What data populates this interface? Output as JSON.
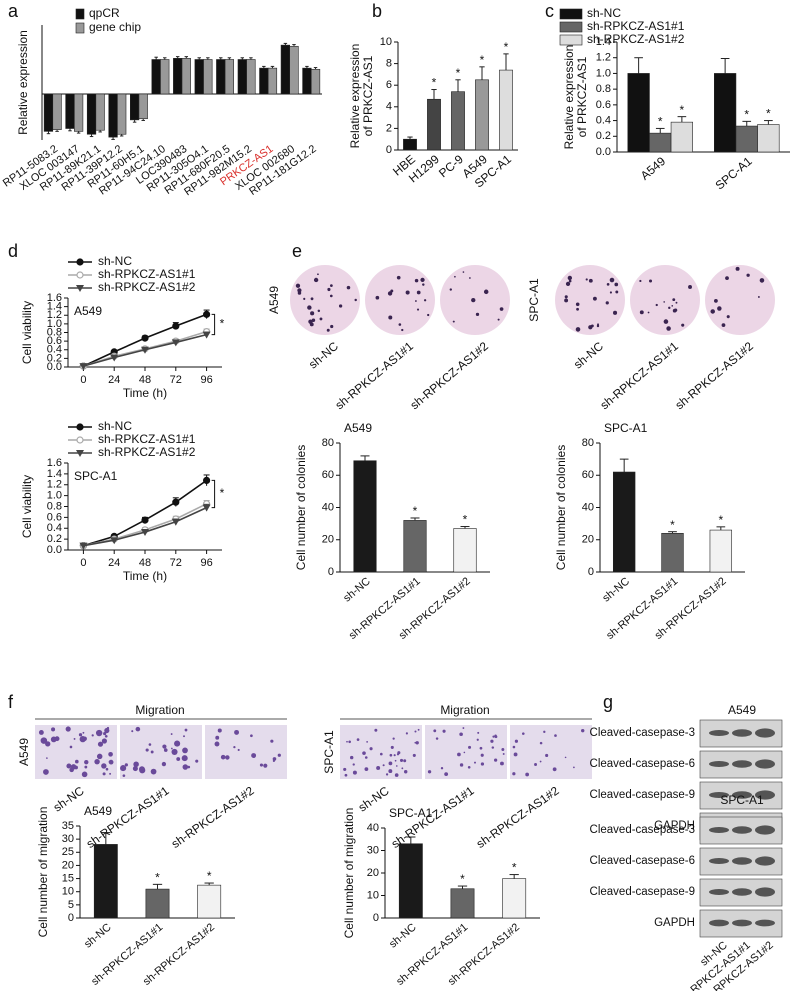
{
  "panel_letters": [
    "a",
    "b",
    "c",
    "d",
    "e",
    "f",
    "g"
  ],
  "chart_data": [
    {
      "type": "bar",
      "ylabel": "Relative expression",
      "categories": [
        "RP11-5083.2",
        "XLOC 003147",
        "RP11-89K21.1",
        "RP11-39P12.2",
        "RP11-60H5.1",
        "RP11-94C24.10",
        "LOC390483",
        "RP11-305O4.1",
        "RP11-680F20.5",
        "RP11-982M15.2",
        "PRKCZ-AS1",
        "XLOC 002680",
        "RP11-181G12.2"
      ],
      "highlight": {
        "category": "PRKCZ-AS1",
        "color": "#d9302c"
      },
      "series": [
        {
          "name": "qpCR",
          "color": "#111111",
          "values": [
            -6.5,
            -6,
            -7,
            -7.5,
            -4.5,
            6,
            6.2,
            6,
            6,
            6,
            4.5,
            8.5,
            4.5
          ],
          "errors": [
            0.4,
            0.4,
            0.4,
            0.4,
            0.4,
            0.4,
            0.3,
            0.3,
            0.3,
            0.3,
            0.3,
            0.3,
            0.3
          ]
        },
        {
          "name": "gene chip",
          "color": "#999999",
          "values": [
            -6.2,
            -6.5,
            -6.3,
            -7,
            -4.3,
            6,
            6.2,
            6,
            6,
            6,
            4.5,
            8.3,
            4.3
          ],
          "errors": [
            0.3,
            0.3,
            0.3,
            0.3,
            0.3,
            0.3,
            0.3,
            0.3,
            0.3,
            0.3,
            0.3,
            0.3,
            0.3
          ]
        }
      ],
      "ylim": [
        -8,
        12
      ]
    },
    {
      "type": "bar",
      "ylabel": [
        "Relative expression",
        "of PRKCZ-AS1"
      ],
      "categories": [
        "HBE",
        "H1299",
        "PC-9",
        "A549",
        "SPC-A1"
      ],
      "values": [
        1,
        4.7,
        5.4,
        6.5,
        7.4
      ],
      "errors": [
        0.2,
        0.9,
        1.1,
        1.2,
        1.5
      ],
      "colors": [
        "#111111",
        "#444444",
        "#666666",
        "#999999",
        "#dddddd"
      ],
      "significance": [
        null,
        "*",
        "*",
        "*",
        "*"
      ],
      "ylim": [
        0,
        10
      ],
      "yticks": [
        0,
        2,
        4,
        6,
        8,
        10
      ]
    },
    {
      "type": "bar",
      "ylabel": [
        "Relative expression",
        "of PRKCZ-AS1"
      ],
      "categories": [
        "A549",
        "SPC-A1"
      ],
      "series": [
        {
          "name": "sh-NC",
          "color": "#111111",
          "values": [
            1,
            1
          ],
          "errors": [
            0.2,
            0.19
          ]
        },
        {
          "name": "sh-RPKCZ-AS1#1",
          "color": "#666666",
          "values": [
            0.24,
            0.33
          ],
          "errors": [
            0.06,
            0.06
          ],
          "significance": [
            "*",
            "*"
          ]
        },
        {
          "name": "sh-RPKCZ-AS1#2",
          "color": "#dddddd",
          "values": [
            0.38,
            0.35
          ],
          "errors": [
            0.07,
            0.05
          ],
          "significance": [
            "*",
            "*"
          ]
        }
      ],
      "ylim": [
        0,
        1.4
      ],
      "yticks": [
        {
          "value": 0,
          "label": "0.0"
        },
        0.2,
        0.4,
        0.6,
        0.8,
        {
          "value": 1,
          "label": "1.0"
        },
        1.2,
        1.4
      ]
    },
    {
      "type": "line",
      "title": "A549",
      "ylabel": "Cell viability",
      "xlabel": "Time (h)",
      "x": [
        0,
        24,
        48,
        72,
        96
      ],
      "xlim": [
        -12,
        108
      ],
      "xticks": [
        0,
        24,
        48,
        72,
        96
      ],
      "ylim": [
        0,
        1.6
      ],
      "yticks": [
        {
          "value": 0,
          "label": "0.0"
        },
        0.2,
        0.4,
        0.6,
        0.8,
        {
          "value": 1,
          "label": "1.0"
        },
        1.2,
        1.4,
        1.6
      ],
      "annotation": "*",
      "series": [
        {
          "name": "sh-NC",
          "color": "#111111",
          "marker": "circle",
          "values": [
            0.02,
            0.35,
            0.67,
            0.95,
            1.22
          ],
          "errors": [
            0.01,
            0.03,
            0.05,
            0.08,
            0.1
          ]
        },
        {
          "name": "sh-RPKCZ-AS1#1",
          "color": "#aaaaaa",
          "marker": "open-circle",
          "values": [
            0.02,
            0.25,
            0.42,
            0.6,
            0.82
          ],
          "errors": [
            0.01,
            0.03,
            0.04,
            0.05,
            0.06
          ]
        },
        {
          "name": "sh-RPKCZ-AS1#2",
          "color": "#444444",
          "marker": "triangle",
          "values": [
            0.02,
            0.22,
            0.4,
            0.57,
            0.75
          ],
          "errors": [
            0.01,
            0.03,
            0.04,
            0.05,
            0.06
          ]
        }
      ]
    },
    {
      "type": "line",
      "title": "SPC-A1",
      "ylabel": "Cell viability",
      "xlabel": "Time (h)",
      "x": [
        0,
        24,
        48,
        72,
        96
      ],
      "xlim": [
        -12,
        108
      ],
      "xticks": [
        0,
        24,
        48,
        72,
        96
      ],
      "ylim": [
        0,
        1.6
      ],
      "yticks": [
        {
          "value": 0,
          "label": "0.0"
        },
        0.2,
        0.4,
        0.6,
        0.8,
        {
          "value": 1,
          "label": "1.0"
        },
        1.2,
        1.4,
        1.6
      ],
      "annotation": "*",
      "series": [
        {
          "name": "sh-NC",
          "color": "#111111",
          "marker": "circle",
          "values": [
            0.08,
            0.25,
            0.55,
            0.88,
            1.28
          ],
          "errors": [
            0.01,
            0.03,
            0.05,
            0.08,
            0.1
          ]
        },
        {
          "name": "sh-RPKCZ-AS1#1",
          "color": "#aaaaaa",
          "marker": "open-circle",
          "values": [
            0.08,
            0.2,
            0.37,
            0.57,
            0.85
          ],
          "errors": [
            0.01,
            0.03,
            0.04,
            0.05,
            0.06
          ]
        },
        {
          "name": "sh-RPKCZ-AS1#2",
          "color": "#444444",
          "marker": "triangle",
          "values": [
            0.08,
            0.18,
            0.33,
            0.52,
            0.78
          ],
          "errors": [
            0.01,
            0.03,
            0.04,
            0.05,
            0.06
          ]
        }
      ]
    },
    {
      "type": "bar",
      "title": "A549",
      "ylabel": "Cell number of colonies",
      "categories": [
        "sh-NC",
        "sh-RPKCZ-AS1#1",
        "sh-RPKCZ-AS1#2"
      ],
      "values": [
        69,
        32,
        27
      ],
      "errors": [
        3,
        1.5,
        1.2
      ],
      "colors": [
        "#1a1a1a",
        "#666666",
        "#f2f2f2"
      ],
      "significance": [
        null,
        "*",
        "*"
      ],
      "ylim": [
        0,
        80
      ],
      "yticks": [
        0,
        20,
        40,
        60,
        80
      ]
    },
    {
      "type": "bar",
      "title": "SPC-A1",
      "ylabel": "Cell number of colonies",
      "categories": [
        "sh-NC",
        "sh-RPKCZ-AS1#1",
        "sh-RPKCZ-AS1#2"
      ],
      "values": [
        62,
        24,
        26
      ],
      "errors": [
        8,
        1,
        2
      ],
      "colors": [
        "#1a1a1a",
        "#666666",
        "#f2f2f2"
      ],
      "significance": [
        null,
        "*",
        "*"
      ],
      "ylim": [
        0,
        80
      ],
      "yticks": [
        0,
        20,
        40,
        60,
        80
      ]
    },
    {
      "type": "bar",
      "title": "A549",
      "ylabel": "Cell number of migration",
      "categories": [
        "sh-NC",
        "sh-RPKCZ-AS1#1",
        "sh-RPKCZ-AS1#2"
      ],
      "values": [
        28,
        11,
        12.5
      ],
      "errors": [
        4.5,
        1.8,
        0.8
      ],
      "colors": [
        "#1a1a1a",
        "#666666",
        "#f2f2f2"
      ],
      "significance": [
        null,
        "*",
        "*"
      ],
      "ylim": [
        0,
        35
      ],
      "yticks": [
        0,
        5,
        10,
        15,
        20,
        25,
        30,
        35
      ]
    },
    {
      "type": "bar",
      "title": "SPC-A1",
      "ylabel": "Cell number of migration",
      "categories": [
        "sh-NC",
        "sh-RPKCZ-AS1#1",
        "sh-RPKCZ-AS1#2"
      ],
      "values": [
        33,
        13,
        17.5
      ],
      "errors": [
        3,
        1.2,
        1.8
      ],
      "colors": [
        "#1a1a1a",
        "#666666",
        "#f2f2f2"
      ],
      "significance": [
        null,
        "*",
        "*"
      ],
      "ylim": [
        0,
        40
      ],
      "yticks": [
        0,
        10,
        20,
        30,
        40
      ]
    }
  ],
  "colony_images": [
    {
      "cell_line": "A549",
      "labels": [
        "sh-NC",
        "sh-RPKCZ-AS1#1",
        "sh-RPKCZ-AS1#2"
      ]
    },
    {
      "cell_line": "SPC-A1",
      "labels": [
        "sh-NC",
        "sh-RPKCZ-AS1#1",
        "sh-RPKCZ-AS1#2"
      ]
    }
  ],
  "migration_images": [
    {
      "title": "Migration",
      "cell_line": "A549",
      "labels": [
        "sh-NC",
        "sh-RPKCZ-AS1#1",
        "sh-RPKCZ-AS1#2"
      ]
    },
    {
      "title": "Migration",
      "cell_line": "SPC-A1",
      "labels": [
        "sh-NC",
        "sh-RPKCZ-AS1#1",
        "sh-RPKCZ-AS1#2"
      ]
    }
  ],
  "western_blot": {
    "blots": [
      {
        "cell_line": "A549",
        "rows": [
          "Cleaved-casepase-3",
          "Cleaved-casepase-6",
          "Cleaved-casepase-9",
          "GAPDH"
        ]
      },
      {
        "cell_line": "SPC-A1",
        "rows": [
          "Cleaved-casepase-3",
          "Cleaved-casepase-6",
          "Cleaved-casepase-9",
          "GAPDH"
        ]
      }
    ],
    "lanes": [
      "sh-NC",
      "sh-RPKCZ-AS1#1",
      "sh-RPKCZ-AS1#2"
    ]
  }
}
